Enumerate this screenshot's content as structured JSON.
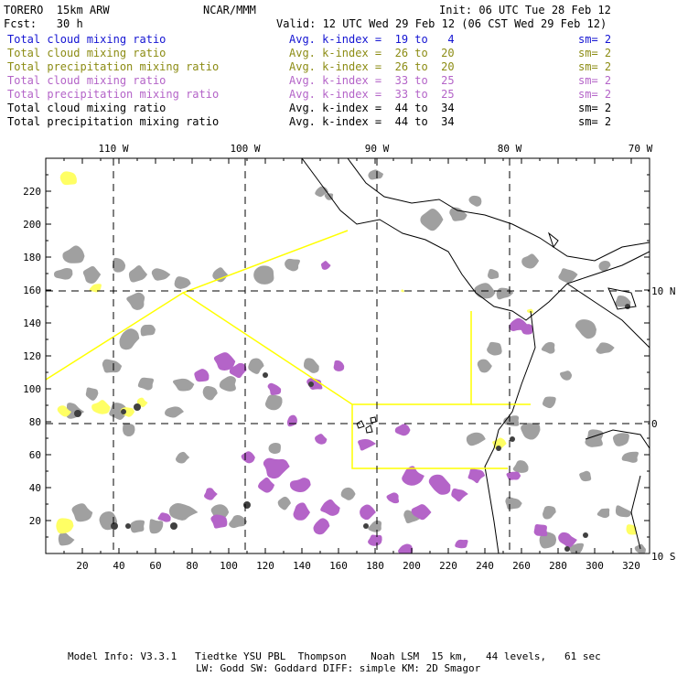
{
  "header": {
    "model": "TORERO  15km ARW",
    "org": "NCAR/MMM",
    "init": "Init: 06 UTC Tue 28 Feb 12",
    "fcst": "Fcst:   30 h",
    "valid": "Valid: 12 UTC Wed 29 Feb 12 (06 CST Wed 29 Feb 12)"
  },
  "legend": [
    {
      "field": "Total cloud mixing ratio",
      "kindex": "Avg. k-index =  19 to   4",
      "sm": "sm= 2",
      "color": "#1414d2"
    },
    {
      "field": "Total cloud mixing ratio",
      "kindex": "Avg. k-index =  26 to  20",
      "sm": "sm= 2",
      "color": "#8c8c14"
    },
    {
      "field": "Total precipitation mixing ratio",
      "kindex": "Avg. k-index =  26 to  20",
      "sm": "sm= 2",
      "color": "#8c8c14"
    },
    {
      "field": "Total cloud mixing ratio",
      "kindex": "Avg. k-index =  33 to  25",
      "sm": "sm= 2",
      "color": "#b464c8"
    },
    {
      "field": "Total precipitation mixing ratio",
      "kindex": "Avg. k-index =  33 to  25",
      "sm": "sm= 2",
      "color": "#b464c8"
    },
    {
      "field": "Total cloud mixing ratio",
      "kindex": "Avg. k-index =  44 to  34",
      "sm": "sm= 2",
      "color": "#000000"
    },
    {
      "field": "Total precipitation mixing ratio",
      "kindex": "Avg. k-index =  44 to  34",
      "sm": "sm= 2",
      "color": "#000000"
    }
  ],
  "map": {
    "lon_labels": [
      "110 W",
      "100 W",
      "90 W",
      "80 W",
      "70 W"
    ],
    "lat_labels": [
      "10 N",
      "0",
      "10 S"
    ],
    "x_ticks": [
      "20",
      "40",
      "60",
      "80",
      "100",
      "120",
      "140",
      "160",
      "180",
      "200",
      "220",
      "240",
      "260",
      "280",
      "300",
      "320"
    ],
    "y_ticks": [
      "220",
      "200",
      "180",
      "160",
      "140",
      "120",
      "100",
      "80",
      "60",
      "40",
      "20"
    ],
    "colors": {
      "frame": "#000000",
      "grid": "#000000",
      "boundary": "#ffff00",
      "cloud_gray": "#a0a0a0",
      "precip_purple": "#b464c8",
      "bright": "#ffff64",
      "core": "#404040"
    }
  },
  "footer": {
    "line1": "Model Info: V3.3.1   Tiedtke YSU PBL  Thompson    Noah LSM  15 km,   44 levels,   61 sec",
    "line2": "LW: Godd SW: Goddard DIFF: simple KM: 2D Smagor"
  }
}
